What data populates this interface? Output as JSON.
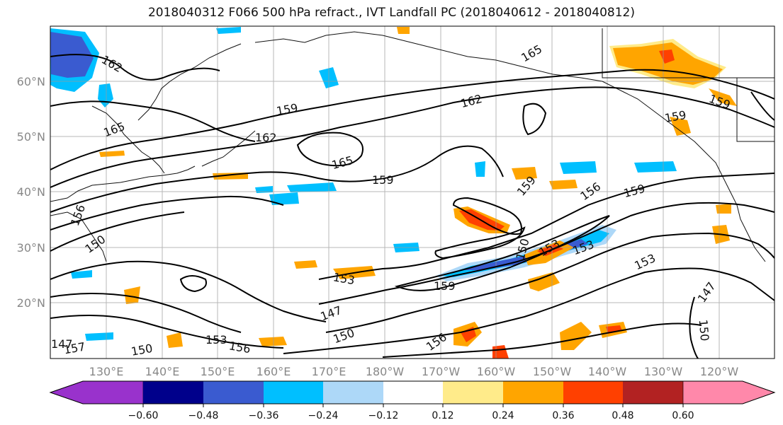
{
  "title": "2018040312 F066 500 hPa refract., IVT Landfall PC (2018040612 - 2018040812)",
  "lat_labels": [
    "60°N",
    "50°N",
    "40°N",
    "30°N",
    "20°N"
  ],
  "lon_labels": [
    "130°E",
    "140°E",
    "150°E",
    "160°E",
    "170°E",
    "180°W",
    "170°W",
    "160°W",
    "150°W",
    "140°W",
    "130°W",
    "120°W"
  ],
  "contour_labels": [
    "162",
    "165",
    "165",
    "162",
    "159",
    "162",
    "165",
    "159",
    "159",
    "156",
    "159",
    "159",
    "153",
    "159",
    "150",
    "153",
    "153",
    "147",
    "150",
    "156",
    "147",
    "150",
    "153",
    "156",
    "150",
    "153",
    "159",
    "147",
    "150",
    "156",
    "157"
  ],
  "colorbar": {
    "ticks": [
      "−0.60",
      "−0.48",
      "−0.36",
      "−0.24",
      "−0.12",
      "0.12",
      "0.24",
      "0.36",
      "0.48",
      "0.60"
    ],
    "colors": [
      "#9932cc",
      "#00008b",
      "#3a5bd0",
      "#00bfff",
      "#add8f8",
      "#ffffff",
      "#ffeb8a",
      "#ffa500",
      "#ff4000",
      "#b22222",
      "#ff88aa"
    ]
  },
  "shading_colors": {
    "blue_dark": "#3a5bd0",
    "blue": "#00bfff",
    "blue_light": "#add8f8",
    "yellow": "#ffeb8a",
    "orange": "#ffa500",
    "red_orange": "#ff4000",
    "dark_red": "#b22222"
  }
}
